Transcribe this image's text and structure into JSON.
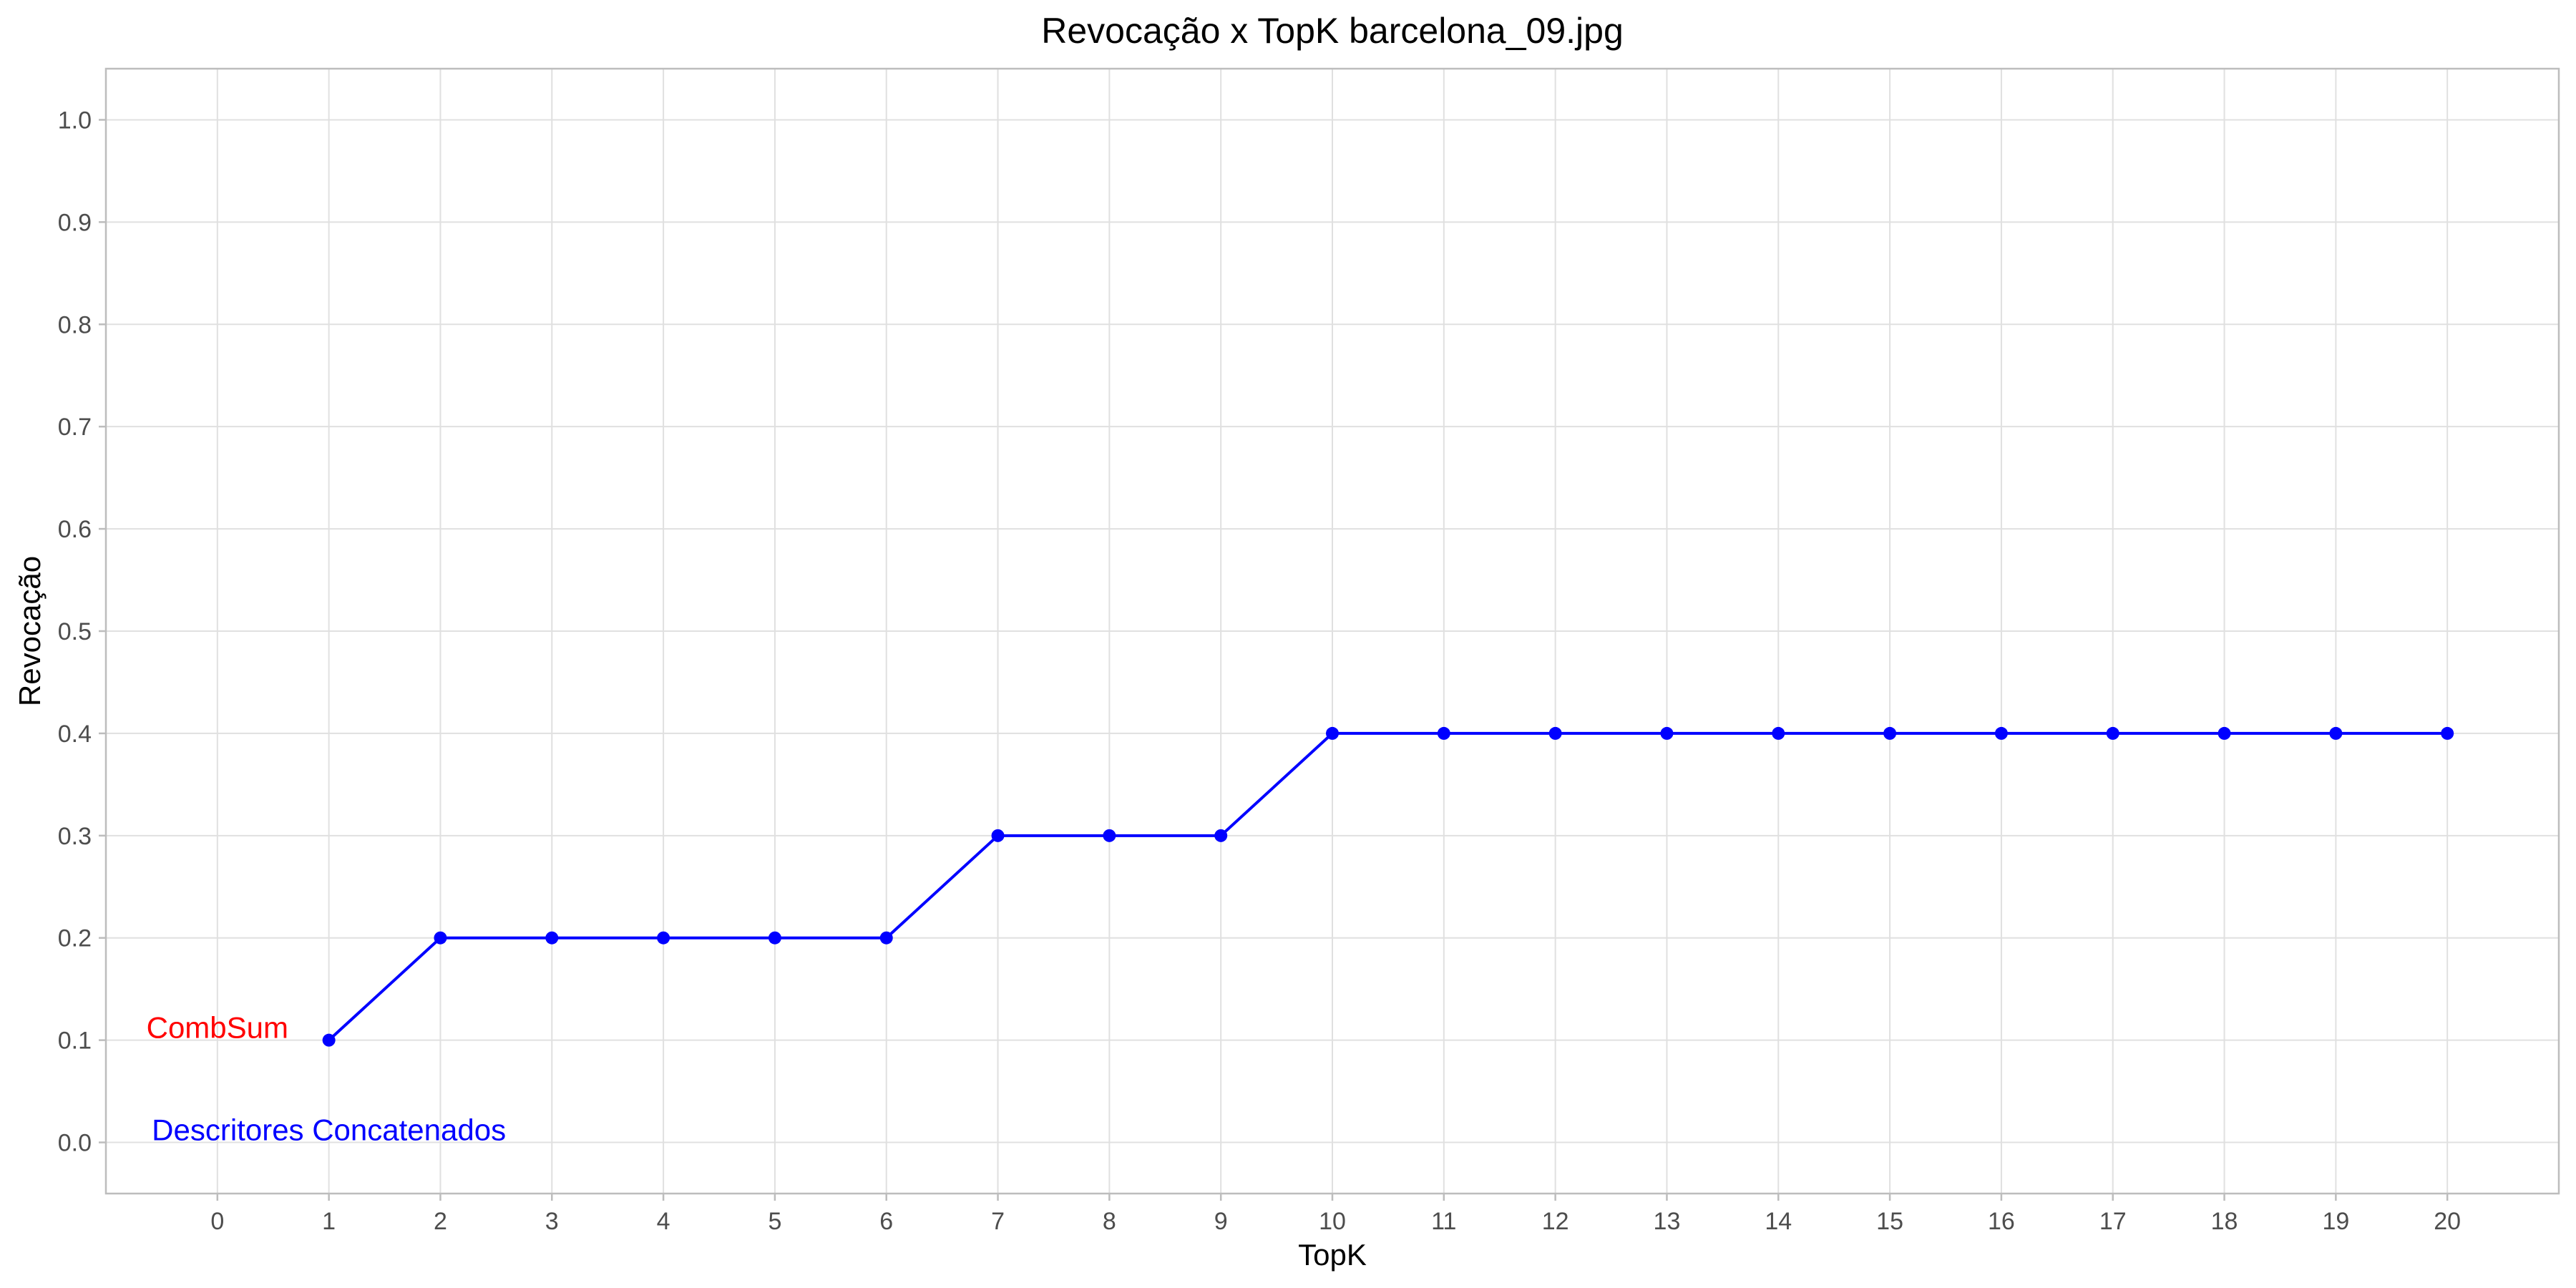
{
  "chart_data": {
    "type": "line",
    "title": "Revocação x TopK barcelona_09.jpg",
    "xlabel": "TopK",
    "ylabel": "Revocação",
    "xlim": [
      -1,
      21
    ],
    "ylim": [
      -0.05,
      1.05
    ],
    "x_ticks": [
      0,
      1,
      2,
      3,
      4,
      5,
      6,
      7,
      8,
      9,
      10,
      11,
      12,
      13,
      14,
      15,
      16,
      17,
      18,
      19,
      20
    ],
    "y_ticks": [
      0.0,
      0.1,
      0.2,
      0.3,
      0.4,
      0.5,
      0.6,
      0.7,
      0.8,
      0.9,
      1.0
    ],
    "y_tick_labels": [
      "0.0",
      "0.1",
      "0.2",
      "0.3",
      "0.4",
      "0.5",
      "0.6",
      "0.7",
      "0.8",
      "0.9",
      "1.0"
    ],
    "grid": true,
    "series": [
      {
        "color": "#0000ff",
        "x": [
          1,
          2,
          3,
          4,
          5,
          6,
          7,
          8,
          9,
          10,
          11,
          12,
          13,
          14,
          15,
          16,
          17,
          18,
          19,
          20
        ],
        "y": [
          0.1,
          0.2,
          0.2,
          0.2,
          0.2,
          0.2,
          0.3,
          0.3,
          0.3,
          0.4,
          0.4,
          0.4,
          0.4,
          0.4,
          0.4,
          0.4,
          0.4,
          0.4,
          0.4,
          0.4
        ]
      }
    ],
    "annotations": [
      {
        "text": "CombSum",
        "color": "#ff0000",
        "x": 0,
        "y": 0.11
      },
      {
        "text": "Descritores Concatenados",
        "color": "#0000ff",
        "x": 1,
        "y": 0.01
      }
    ]
  }
}
